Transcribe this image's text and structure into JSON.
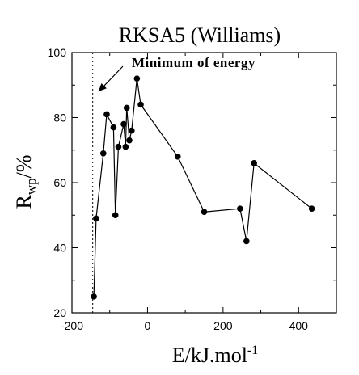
{
  "chart_data": {
    "type": "line",
    "title": "RKSA5 (Williams)",
    "xlabel_main": "E/kJ.mol",
    "xlabel_sup": "-1",
    "ylabel_main": "R",
    "ylabel_sub": "wp",
    "ylabel_tail": "/%",
    "xlim": [
      -200,
      500
    ],
    "ylim": [
      20,
      100
    ],
    "xticks": [
      -200,
      0,
      200,
      400
    ],
    "xtick_labels": [
      "-200",
      "0",
      "200",
      "400"
    ],
    "yticks": [
      20,
      40,
      60,
      80,
      100
    ],
    "ytick_labels": [
      "20",
      "40",
      "60",
      "80",
      "100"
    ],
    "reference_line_x": -145,
    "annotation": {
      "text": "Minimum of energy",
      "arrow_to": [
        -130,
        88
      ]
    },
    "series": [
      {
        "points": [
          [
            -142,
            25
          ],
          [
            -136,
            49
          ],
          [
            -117,
            69
          ],
          [
            -108,
            81
          ],
          [
            -90,
            77
          ],
          [
            -85,
            50
          ],
          [
            -77,
            71
          ],
          [
            -63,
            78
          ],
          [
            -58,
            71
          ],
          [
            -55,
            83
          ],
          [
            -48,
            73
          ],
          [
            -42,
            76
          ],
          [
            -28,
            92
          ],
          [
            -18,
            84
          ],
          [
            80,
            68
          ],
          [
            150,
            51
          ],
          [
            245,
            52
          ],
          [
            262,
            42
          ],
          [
            282,
            66
          ],
          [
            435,
            52
          ]
        ]
      }
    ],
    "colors": {
      "line": "#000000",
      "marker": "#000000",
      "axis": "#000000"
    }
  }
}
